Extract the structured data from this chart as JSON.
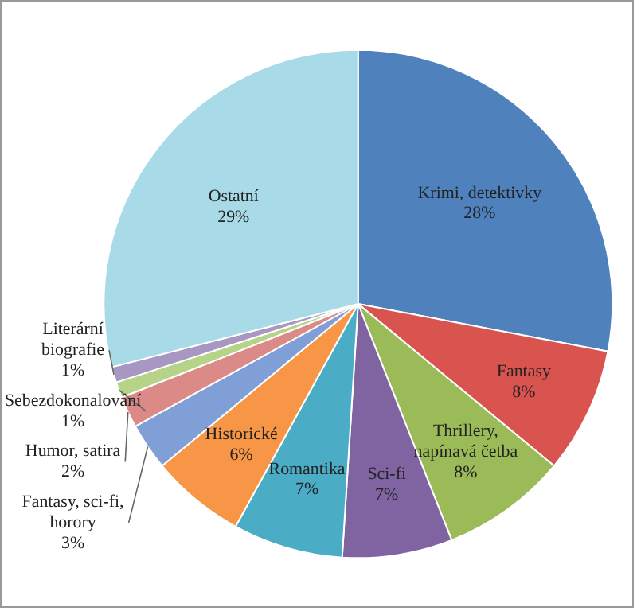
{
  "chart_data": {
    "type": "pie",
    "categories": [
      "Krimi, detektivky",
      "Fantasy",
      "Thrillery, napínavá četba",
      "Sci-fi",
      "Romantika",
      "Historické",
      "Fantasy, sci-fi, horory",
      "Humor, satira",
      "Sebezdokonalování",
      "Literární biografie",
      "Ostatní"
    ],
    "values": [
      28,
      8,
      8,
      7,
      7,
      6,
      3,
      2,
      1,
      1,
      29
    ],
    "colors": [
      "#4f81bd",
      "#d9534f",
      "#9bbb59",
      "#8064a2",
      "#4bacc6",
      "#f79646",
      "#7f9fd6",
      "#dc8a88",
      "#b6d387",
      "#a897c2",
      "#a8dae8"
    ],
    "value_labels": [
      "28%",
      "8%",
      "8%",
      "7%",
      "7%",
      "6%",
      "3%",
      "2%",
      "1%",
      "1%",
      "29%"
    ],
    "legend": false
  }
}
